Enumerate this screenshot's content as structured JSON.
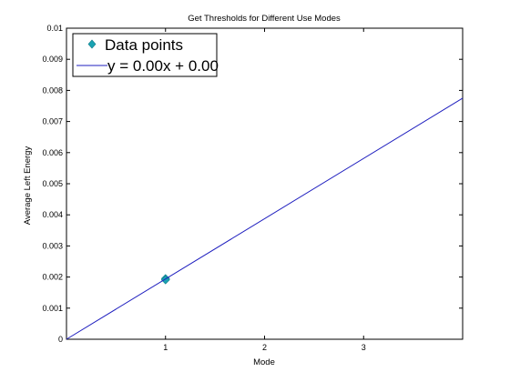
{
  "chart_data": {
    "type": "line",
    "title": "Get Thresholds for Different Use Modes",
    "xlabel": "Mode",
    "ylabel": "Average Left Energy",
    "xlim": [
      0,
      4
    ],
    "ylim": [
      0,
      0.01
    ],
    "xticks": [
      1,
      2,
      3
    ],
    "yticks": [
      0,
      0.001,
      0.002,
      0.003,
      0.004,
      0.005,
      0.006,
      0.007,
      0.008,
      0.009,
      0.01
    ],
    "xtick_labels": [
      "1",
      "2",
      "3"
    ],
    "ytick_labels": [
      "0",
      "0.001",
      "0.002",
      "0.003",
      "0.004",
      "0.005",
      "0.006",
      "0.007",
      "0.008",
      "0.009",
      "0.01"
    ],
    "grid": false,
    "legend_position": "top-left",
    "series": [
      {
        "name": "Data points",
        "kind": "scatter",
        "marker": "diamond",
        "color": "#1aa3b3",
        "points": [
          {
            "x": 1,
            "y": 0.00195
          },
          {
            "x": 1,
            "y": 0.00191
          }
        ]
      },
      {
        "name": "y = 0.00x + 0.00",
        "kind": "line",
        "color": "#1f1fbf",
        "points": [
          {
            "x": 0,
            "y": 0
          },
          {
            "x": 4,
            "y": 0.00775
          }
        ]
      }
    ]
  }
}
